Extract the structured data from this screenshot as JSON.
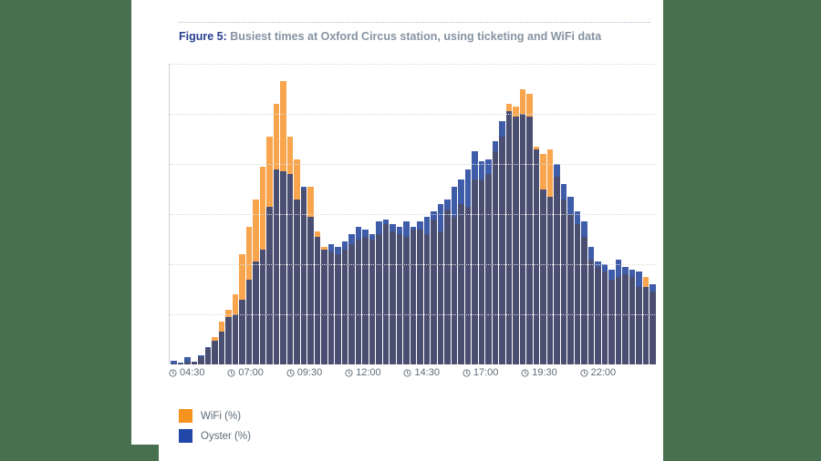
{
  "page": {
    "background_color": "#47704F",
    "panel_color": "#FFFFFF"
  },
  "figure": {
    "label": "Figure 5:",
    "caption": " Busiest times at Oxford Circus station, using ticketing and WiFi data"
  },
  "legend": {
    "items": [
      {
        "label": "WiFi (%)",
        "color": "#F6921E"
      },
      {
        "label": "Oyster (%)",
        "color": "#2148A8"
      }
    ]
  },
  "chart_data": {
    "type": "bar",
    "title": "Busiest times at Oxford Circus station, using ticketing and WiFi data",
    "xlabel": "",
    "ylabel": "",
    "x_tick_labels": [
      "04:30",
      "07:00",
      "09:30",
      "12:00",
      "14:30",
      "17:00",
      "19:30",
      "22:00"
    ],
    "x_description": "time of day, one bar per ~15-minute interval from ~04:15 to ~00:30",
    "ylim": [
      0,
      6
    ],
    "gridline_levels": [
      1,
      2,
      3,
      4,
      5,
      6
    ],
    "grid": "dotted horizontal",
    "legend_position": "bottom-left",
    "overlay_style": "series bars overlap at same x; dark navy where both coincide, orange tip where WiFi exceeds Oyster, bright blue tip where Oyster exceeds WiFi",
    "overlap_color": "#4A4F72",
    "series": [
      {
        "name": "WiFi (%)",
        "legend_color": "#F6921E",
        "alone_color": "#F9A54E",
        "values": [
          0.02,
          0.02,
          0.05,
          0.06,
          0.14,
          0.32,
          0.55,
          0.85,
          1.1,
          1.4,
          2.2,
          2.75,
          3.3,
          3.95,
          4.55,
          5.2,
          5.65,
          4.55,
          4.1,
          3.5,
          3.55,
          2.65,
          2.35,
          2.25,
          2.2,
          2.3,
          2.4,
          2.5,
          2.55,
          2.5,
          2.6,
          2.8,
          2.65,
          2.6,
          2.55,
          2.7,
          2.7,
          2.6,
          2.9,
          2.65,
          3.1,
          2.95,
          3.2,
          3.15,
          3.7,
          3.7,
          3.8,
          4.25,
          4.55,
          5.2,
          5.15,
          5.5,
          5.4,
          4.35,
          4.2,
          4.3,
          3.75,
          3.3,
          3.0,
          2.8,
          2.55,
          2.1,
          1.95,
          1.85,
          1.7,
          1.75,
          1.8,
          1.75,
          1.55,
          1.75,
          1.45
        ]
      },
      {
        "name": "Oyster (%)",
        "legend_color": "#2148A8",
        "alone_color": "#3F5CA9",
        "values": [
          0.08,
          0.03,
          0.15,
          0.06,
          0.18,
          0.35,
          0.48,
          0.65,
          0.95,
          1.0,
          1.3,
          1.7,
          2.05,
          2.3,
          3.15,
          3.9,
          3.85,
          3.8,
          3.3,
          3.55,
          2.95,
          2.55,
          2.3,
          2.4,
          2.35,
          2.45,
          2.6,
          2.75,
          2.7,
          2.6,
          2.85,
          2.9,
          2.8,
          2.75,
          2.85,
          2.75,
          2.85,
          2.95,
          3.05,
          3.2,
          3.3,
          3.55,
          3.7,
          3.9,
          4.25,
          4.05,
          4.1,
          4.45,
          4.85,
          5.05,
          4.95,
          5.0,
          4.95,
          4.3,
          3.5,
          3.35,
          4.0,
          3.6,
          3.35,
          3.05,
          2.85,
          2.35,
          2.05,
          2.0,
          1.9,
          2.1,
          1.95,
          1.9,
          1.85,
          1.55,
          1.6
        ]
      }
    ]
  }
}
